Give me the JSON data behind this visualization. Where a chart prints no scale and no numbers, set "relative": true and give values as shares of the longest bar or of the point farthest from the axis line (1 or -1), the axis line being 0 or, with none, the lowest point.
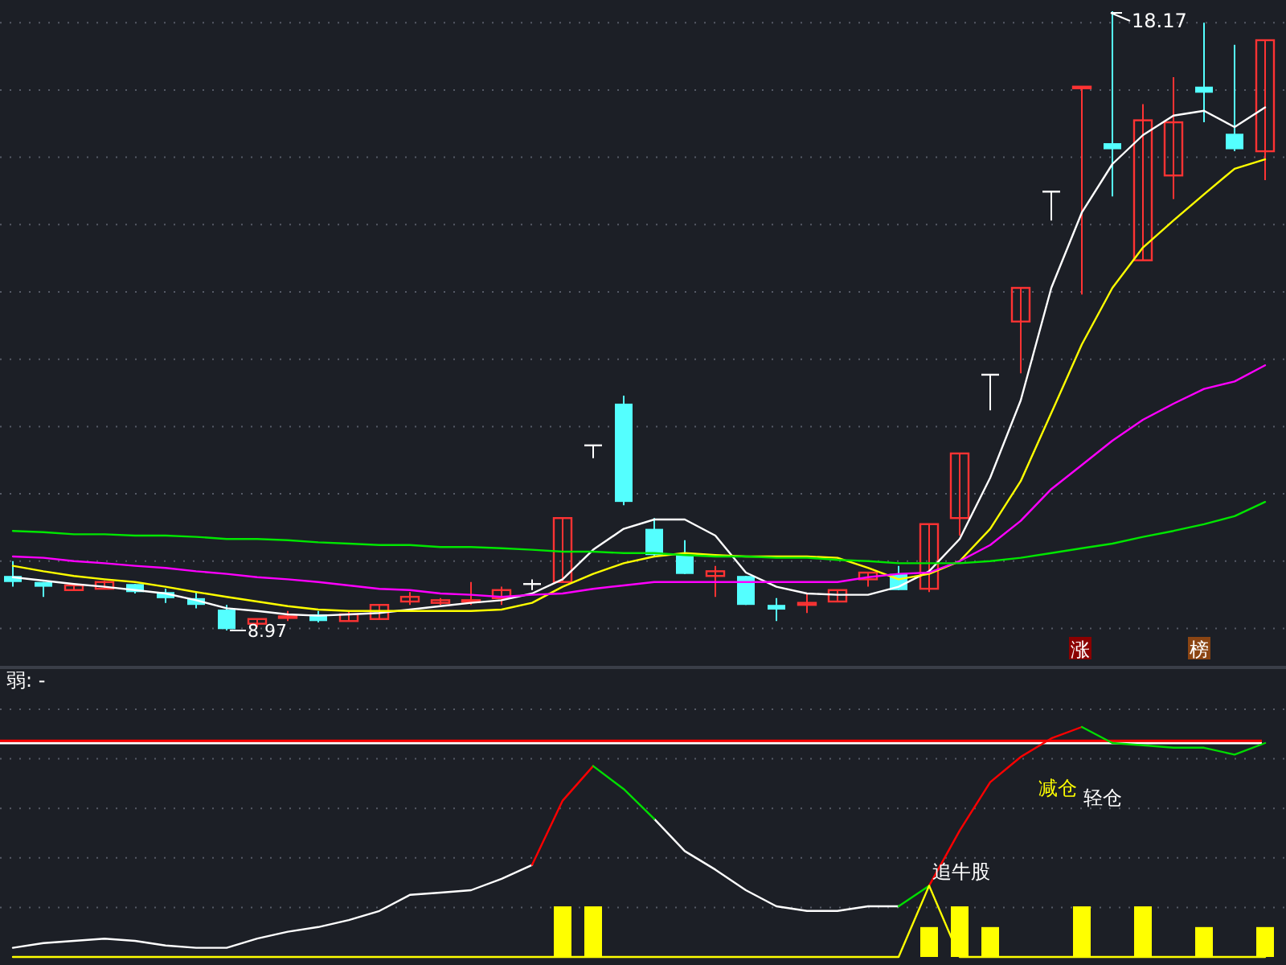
{
  "chart_data": [
    {
      "type": "candlestick",
      "categories": [
        null,
        null,
        null,
        null,
        null,
        null,
        null,
        null,
        null,
        null,
        null,
        null,
        null,
        null,
        null,
        null,
        null,
        null,
        null,
        null,
        null,
        null,
        null,
        null,
        null,
        null,
        null,
        null,
        null,
        null,
        null,
        null,
        null,
        null,
        null,
        null,
        null,
        null,
        null,
        null,
        null,
        null
      ],
      "ohlc": [
        [
          9.78,
          10.0,
          9.62,
          9.69
        ],
        [
          9.69,
          9.69,
          9.47,
          9.62
        ],
        [
          9.57,
          9.66,
          9.57,
          9.64
        ],
        [
          9.59,
          9.71,
          9.59,
          9.69
        ],
        [
          9.66,
          9.66,
          9.52,
          9.54
        ],
        [
          9.54,
          9.59,
          9.38,
          9.45
        ],
        [
          9.45,
          9.54,
          9.3,
          9.35
        ],
        [
          9.28,
          9.35,
          8.97,
          8.99
        ],
        [
          9.07,
          9.14,
          9.02,
          9.14
        ],
        [
          9.16,
          9.26,
          9.11,
          9.18
        ],
        [
          9.21,
          9.26,
          9.09,
          9.11
        ],
        [
          9.11,
          9.26,
          9.11,
          9.21
        ],
        [
          9.14,
          9.35,
          9.14,
          9.35
        ],
        [
          9.4,
          9.54,
          9.35,
          9.47
        ],
        [
          9.38,
          9.45,
          9.35,
          9.42
        ],
        [
          9.4,
          9.69,
          9.35,
          9.42
        ],
        [
          9.45,
          9.62,
          9.35,
          9.57
        ],
        [
          9.66,
          9.73,
          9.57,
          9.66
        ],
        [
          9.69,
          10.64,
          9.69,
          10.64
        ],
        [
          11.72,
          11.72,
          11.53,
          11.72
        ],
        [
          12.34,
          12.46,
          10.83,
          10.88
        ],
        [
          10.48,
          10.64,
          10.07,
          10.09
        ],
        [
          10.09,
          10.31,
          9.81,
          9.81
        ],
        [
          9.78,
          9.93,
          9.47,
          9.85
        ],
        [
          9.78,
          9.78,
          9.35,
          9.35
        ],
        [
          9.35,
          9.45,
          9.11,
          9.28
        ],
        [
          9.35,
          9.52,
          9.23,
          9.38
        ],
        [
          9.4,
          9.57,
          9.4,
          9.57
        ],
        [
          9.73,
          9.83,
          9.62,
          9.83
        ],
        [
          9.81,
          9.93,
          9.57,
          9.57
        ],
        [
          9.59,
          10.55,
          9.54,
          10.55
        ],
        [
          10.64,
          11.6,
          10.38,
          11.6
        ],
        [
          12.77,
          12.77,
          12.24,
          12.77
        ],
        [
          13.56,
          14.06,
          12.79,
          14.06
        ],
        [
          15.49,
          15.49,
          15.06,
          15.49
        ],
        [
          17.03,
          17.05,
          13.96,
          17.05
        ],
        [
          16.21,
          18.17,
          15.42,
          16.12
        ],
        [
          14.47,
          16.79,
          14.47,
          16.55
        ],
        [
          15.73,
          17.19,
          15.38,
          16.52
        ],
        [
          17.05,
          18.0,
          16.52,
          16.96
        ],
        [
          16.35,
          17.67,
          16.09,
          16.12
        ],
        [
          16.09,
          17.74,
          15.66,
          17.74
        ]
      ],
      "series": [
        {
          "type": "line",
          "color": "#ffffff",
          "values": [
            9.76,
            9.71,
            9.66,
            9.62,
            9.57,
            9.52,
            9.42,
            9.3,
            9.26,
            9.21,
            9.19,
            9.21,
            9.23,
            9.28,
            9.33,
            9.38,
            9.42,
            9.52,
            9.73,
            10.17,
            10.48,
            10.62,
            10.62,
            10.38,
            9.83,
            9.62,
            9.52,
            9.5,
            9.5,
            9.62,
            9.85,
            10.33,
            11.24,
            12.39,
            14.06,
            15.18,
            15.9,
            16.33,
            16.62,
            16.69,
            16.45,
            16.74
          ]
        },
        {
          "type": "line",
          "color": "#ffff00",
          "values": [
            9.93,
            9.85,
            9.78,
            9.73,
            9.69,
            9.62,
            9.54,
            9.47,
            9.4,
            9.33,
            9.28,
            9.26,
            9.26,
            9.26,
            9.26,
            9.26,
            9.28,
            9.38,
            9.62,
            9.81,
            9.97,
            10.07,
            10.12,
            10.09,
            10.07,
            10.07,
            10.07,
            10.05,
            9.9,
            9.73,
            9.81,
            10.0,
            10.48,
            11.19,
            12.2,
            13.22,
            14.06,
            14.66,
            15.06,
            15.45,
            15.83,
            15.97
          ]
        },
        {
          "type": "line",
          "color": "#ff00ff",
          "values": [
            10.07,
            10.05,
            10.0,
            9.97,
            9.93,
            9.9,
            9.85,
            9.81,
            9.76,
            9.73,
            9.69,
            9.64,
            9.59,
            9.57,
            9.52,
            9.5,
            9.47,
            9.5,
            9.52,
            9.59,
            9.64,
            9.69,
            9.69,
            9.69,
            9.69,
            9.69,
            9.69,
            9.69,
            9.76,
            9.81,
            9.83,
            10.0,
            10.24,
            10.6,
            11.07,
            11.43,
            11.79,
            12.1,
            12.34,
            12.56,
            12.67,
            12.91
          ]
        },
        {
          "type": "line",
          "color": "#00e600",
          "values": [
            10.45,
            10.43,
            10.4,
            10.4,
            10.38,
            10.38,
            10.36,
            10.33,
            10.33,
            10.31,
            10.28,
            10.26,
            10.24,
            10.24,
            10.21,
            10.21,
            10.19,
            10.17,
            10.14,
            10.14,
            10.12,
            10.12,
            10.09,
            10.07,
            10.07,
            10.05,
            10.05,
            10.02,
            10.0,
            9.97,
            9.97,
            9.97,
            10.0,
            10.05,
            10.12,
            10.19,
            10.26,
            10.36,
            10.45,
            10.55,
            10.67,
            10.88
          ]
        }
      ],
      "yticks": [
        {
          "value": 9,
          "label": null
        },
        {
          "value": 10,
          "label": null
        },
        {
          "value": 11,
          "label": null
        },
        {
          "value": 12,
          "label": null
        },
        {
          "value": 13,
          "label": null
        },
        {
          "value": 14,
          "label": null
        },
        {
          "value": 15,
          "label": null
        },
        {
          "value": 16,
          "label": null
        },
        {
          "value": 17,
          "label": null
        },
        {
          "value": 18,
          "label": null
        }
      ],
      "grid": "y",
      "annotations": [
        {
          "text": "8.97",
          "y": 8.97
        },
        "18.17",
        "涨",
        "榜"
      ]
    },
    {
      "type": "line",
      "relative": true,
      "categories": [
        null,
        null,
        null,
        null,
        null,
        null,
        null,
        null,
        null,
        null,
        null,
        null,
        null,
        null,
        null,
        null,
        null,
        null,
        null,
        null,
        null,
        null,
        null,
        null,
        null,
        null,
        null,
        null,
        null,
        null,
        null,
        null,
        null,
        null,
        null,
        null,
        null,
        null,
        null,
        null,
        null,
        null
      ],
      "series": [
        {
          "type": "line",
          "color": "#ffffff",
          "values": [
            0.04,
            0.06,
            0.07,
            0.08,
            0.07,
            0.05,
            0.04,
            0.04,
            0.08,
            0.11,
            0.13,
            0.16,
            0.2,
            0.27,
            0.28,
            0.29,
            0.34,
            0.4,
            null,
            null,
            null,
            0.6,
            0.46,
            0.38,
            0.29,
            0.22,
            0.2,
            0.2,
            0.22,
            0.22,
            null,
            null,
            null,
            null,
            null,
            null,
            null,
            null,
            null,
            null,
            null,
            null
          ]
        },
        {
          "type": "line",
          "color": "#ff0000",
          "values": [
            null,
            null,
            null,
            null,
            null,
            null,
            null,
            null,
            null,
            null,
            null,
            null,
            null,
            null,
            null,
            null,
            null,
            0.4,
            0.68,
            0.83,
            null,
            null,
            null,
            null,
            null,
            null,
            null,
            null,
            null,
            null,
            0.31,
            0.55,
            0.76,
            0.87,
            0.95,
            1.0,
            null,
            null,
            null,
            null,
            null,
            null
          ]
        },
        {
          "type": "line",
          "color": "#00dd00",
          "values": [
            null,
            null,
            null,
            null,
            null,
            null,
            null,
            null,
            null,
            null,
            null,
            null,
            null,
            null,
            null,
            null,
            null,
            null,
            null,
            0.83,
            0.73,
            0.6,
            null,
            null,
            null,
            null,
            null,
            null,
            null,
            0.22,
            0.31,
            null,
            null,
            null,
            null,
            1.0,
            0.93,
            0.92,
            0.91,
            0.91,
            0.88,
            0.93
          ]
        },
        {
          "type": "bar",
          "color": "#ffff00",
          "values": [
            null,
            null,
            null,
            null,
            null,
            null,
            null,
            null,
            null,
            null,
            null,
            null,
            null,
            null,
            null,
            null,
            null,
            null,
            0.22,
            0.22,
            null,
            null,
            null,
            null,
            null,
            null,
            null,
            null,
            null,
            null,
            0.13,
            0.22,
            0.13,
            null,
            null,
            0.22,
            null,
            0.22,
            null,
            0.13,
            null,
            0.13
          ]
        },
        {
          "type": "line",
          "color": "#ffff00",
          "values": [
            0,
            0,
            0,
            0,
            0,
            0,
            0,
            0,
            0,
            0,
            0,
            0,
            0,
            0,
            0,
            0,
            0,
            0,
            0,
            0,
            0,
            0,
            0,
            0,
            0,
            0,
            0,
            0,
            0,
            0,
            0.31,
            0,
            0,
            0,
            0,
            0,
            0,
            0,
            0,
            0,
            0,
            0
          ]
        }
      ],
      "ref_lines": [
        {
          "axis": "y",
          "value": 0.93,
          "color": "#ffffff"
        },
        {
          "axis": "y",
          "value": 0.94,
          "color": "#ff0000"
        }
      ],
      "grid": true,
      "annotations": [
        "弱: -",
        "追牛股",
        "减仓",
        "轻仓"
      ]
    }
  ]
}
